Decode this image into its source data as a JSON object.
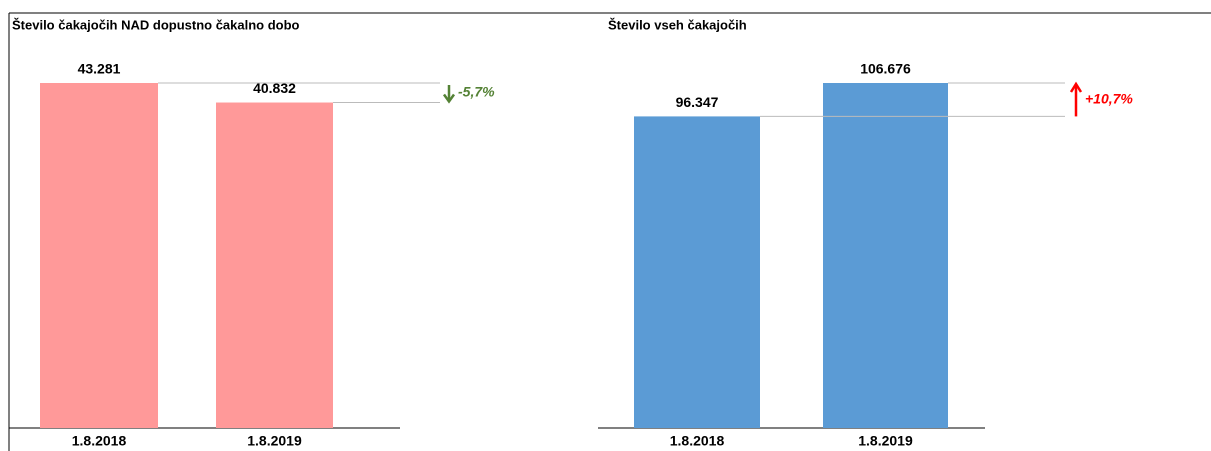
{
  "chart_data": [
    {
      "type": "bar",
      "title": "Število čakajočih NAD dopustno čakalno dobo",
      "categories": [
        "1.8.2018",
        "1.8.2019"
      ],
      "values": [
        43281,
        40832
      ],
      "value_labels": [
        "43.281",
        "40.832"
      ],
      "color": "#ff9999",
      "annotation": "-5,7%",
      "annotation_color": "#548235",
      "direction": "down"
    },
    {
      "type": "bar",
      "title": "Število vseh čakajočih",
      "categories": [
        "1.8.2018",
        "1.8.2019"
      ],
      "values": [
        96347,
        106676
      ],
      "value_labels": [
        "96.347",
        "106.676"
      ],
      "color": "#5b9bd5",
      "annotation": "+10,7%",
      "annotation_color": "#ff0000",
      "direction": "up"
    }
  ]
}
